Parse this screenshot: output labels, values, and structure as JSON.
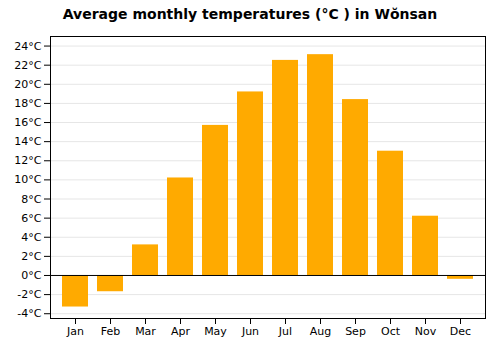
{
  "chart_data": {
    "type": "bar",
    "title": "Average monthly temperatures (°C ) in Wŏnsan",
    "categories": [
      "Jan",
      "Feb",
      "Mar",
      "Apr",
      "May",
      "Jun",
      "Jul",
      "Aug",
      "Sep",
      "Oct",
      "Nov",
      "Dec"
    ],
    "values": [
      -3.3,
      -1.7,
      3.2,
      10.2,
      15.7,
      19.2,
      22.5,
      23.1,
      18.4,
      13.0,
      6.2,
      -0.4
    ],
    "color": "#FFAA00",
    "ylim": [
      -4.5,
      25
    ],
    "yticks": [
      {
        "value": -4,
        "label": "-4°C"
      },
      {
        "value": -2,
        "label": "-2°C"
      },
      {
        "value": 0,
        "label": "0°C"
      },
      {
        "value": 2,
        "label": "2°C"
      },
      {
        "value": 4,
        "label": "4°C"
      },
      {
        "value": 6,
        "label": "6°C"
      },
      {
        "value": 8,
        "label": "8°C"
      },
      {
        "value": 10,
        "label": "10°C"
      },
      {
        "value": 12,
        "label": "12°C"
      },
      {
        "value": 14,
        "label": "14°C"
      },
      {
        "value": 16,
        "label": "16°C"
      },
      {
        "value": 18,
        "label": "18°C"
      },
      {
        "value": 20,
        "label": "20°C"
      },
      {
        "value": 22,
        "label": "22°C"
      },
      {
        "value": 24,
        "label": "24°C"
      }
    ],
    "grid": true
  }
}
